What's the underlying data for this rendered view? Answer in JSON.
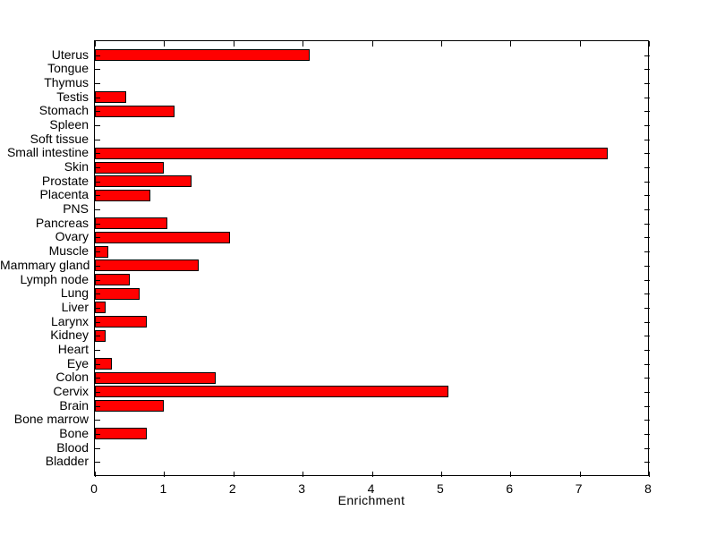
{
  "figure": {
    "background": "#ffffff",
    "title": ""
  },
  "chart_data": {
    "type": "bar",
    "orientation": "horizontal",
    "title": "",
    "xlabel": "Enrichment",
    "ylabel": "",
    "xlim": [
      0,
      8
    ],
    "xticks": [
      0,
      1,
      2,
      3,
      4,
      5,
      6,
      7,
      8
    ],
    "xtick_labels": [
      "0",
      "1",
      "2",
      "3",
      "4",
      "5",
      "6",
      "7",
      "8"
    ],
    "grid": false,
    "legend": null,
    "bar_color": "#ff0000",
    "bar_edge_color": "#000000",
    "axis_color": "#000000",
    "categories": [
      "Uterus",
      "Tongue",
      "Thymus",
      "Testis",
      "Stomach",
      "Spleen",
      "Soft tissue",
      "Small intestine",
      "Skin",
      "Prostate",
      "Placenta",
      "PNS",
      "Pancreas",
      "Ovary",
      "Muscle",
      "Mammary gland",
      "Lymph node",
      "Lung",
      "Liver",
      "Larynx",
      "Kidney",
      "Heart",
      "Eye",
      "Colon",
      "Cervix",
      "Brain",
      "Bone marrow",
      "Bone",
      "Blood",
      "Bladder"
    ],
    "values": [
      3.1,
      0,
      0,
      0.45,
      1.15,
      0,
      0,
      7.4,
      1.0,
      1.4,
      0.8,
      0,
      1.05,
      1.95,
      0.2,
      1.5,
      0.5,
      0.65,
      0.15,
      0.75,
      0.15,
      0,
      0.25,
      1.75,
      5.1,
      1.0,
      0,
      0.75,
      0,
      0
    ]
  }
}
